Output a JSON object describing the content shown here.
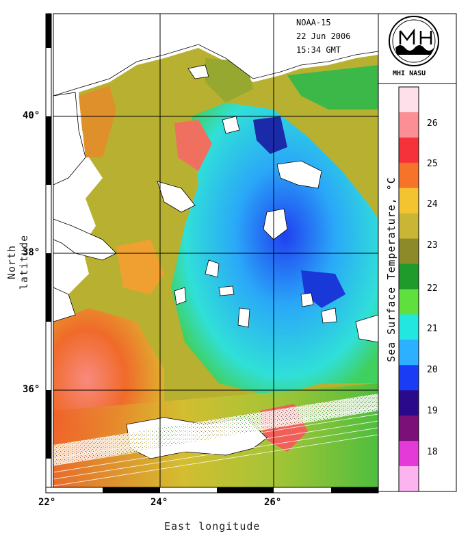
{
  "header": {
    "satellite": "NOAA-15",
    "date": "22 Jun 2006",
    "time": "15:34 GMT"
  },
  "logo": {
    "caption": "MHI NASU"
  },
  "axes": {
    "x_title": "East longitude",
    "y_title": "North latitude",
    "x_ticks": [
      "22°",
      "24°",
      "26°"
    ],
    "y_ticks": [
      "40°",
      "38°",
      "36°"
    ]
  },
  "colorbar": {
    "title": "Sea Surface Temperature, °C",
    "ticks": [
      "26",
      "25",
      "24",
      "23",
      "22",
      "21",
      "20",
      "19",
      "18"
    ],
    "colors": [
      "#fde0ea",
      "#fb8f95",
      "#f5323a",
      "#f6742a",
      "#f3c42f",
      "#c9b634",
      "#8d8a2a",
      "#1e9b2a",
      "#5fe03f",
      "#22e6e0",
      "#2db0ff",
      "#1a3cf5",
      "#2a0a8a",
      "#7a1078",
      "#e43ad8",
      "#fbb4ef"
    ]
  },
  "map": {
    "land_color": "#ffffff",
    "grid_color": "#000000"
  }
}
